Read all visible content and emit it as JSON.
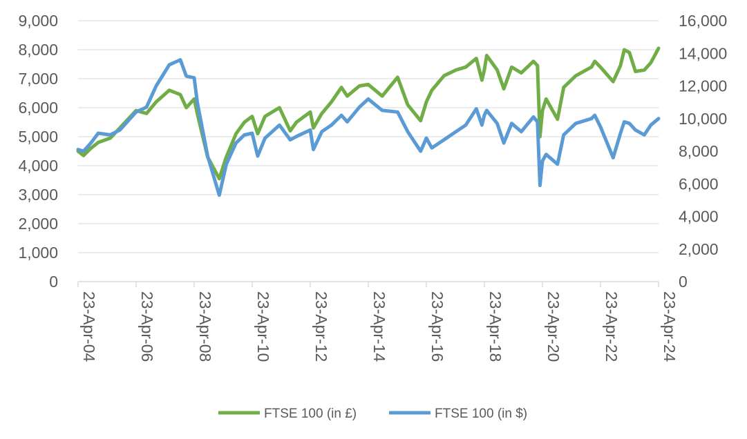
{
  "chart_data": {
    "type": "line",
    "title": "",
    "xlabel": "",
    "ylabel": "",
    "y2label": "",
    "x_ticks": [
      "23-Apr-04",
      "23-Apr-06",
      "23-Apr-08",
      "23-Apr-10",
      "23-Apr-12",
      "23-Apr-14",
      "23-Apr-16",
      "23-Apr-18",
      "23-Apr-20",
      "23-Apr-22",
      "23-Apr-24"
    ],
    "y_left_ticks": [
      "0",
      "1,000",
      "2,000",
      "3,000",
      "4,000",
      "5,000",
      "6,000",
      "7,000",
      "8,000",
      "9,000"
    ],
    "y_right_ticks": [
      "0",
      "2,000",
      "4,000",
      "6,000",
      "8,000",
      "10,000",
      "12,000",
      "14,000",
      "16,000"
    ],
    "ylim_left": [
      0,
      9000
    ],
    "ylim_right": [
      0,
      16000
    ],
    "grid": true,
    "legend_position": "bottom",
    "series": [
      {
        "name": "FTSE 100 (in £)",
        "axis": "left",
        "color": "#70ad47",
        "x": [
          "2004-04-23",
          "2004-07-01",
          "2004-10-01",
          "2005-01-01",
          "2005-06-01",
          "2005-10-01",
          "2006-04-23",
          "2006-09-01",
          "2007-01-01",
          "2007-06-15",
          "2007-11-01",
          "2008-01-15",
          "2008-04-23",
          "2008-06-01",
          "2008-10-10",
          "2009-03-05",
          "2009-06-01",
          "2009-10-01",
          "2010-01-15",
          "2010-04-23",
          "2010-07-01",
          "2010-10-01",
          "2011-04-01",
          "2011-08-15",
          "2011-11-01",
          "2012-04-23",
          "2012-06-01",
          "2012-09-15",
          "2013-01-15",
          "2013-05-20",
          "2013-08-01",
          "2014-01-01",
          "2014-04-23",
          "2014-10-15",
          "2015-04-27",
          "2015-09-01",
          "2016-02-11",
          "2016-04-23",
          "2016-07-01",
          "2016-12-01",
          "2017-05-01",
          "2017-09-01",
          "2018-01-12",
          "2018-03-23",
          "2018-04-23",
          "2018-05-22",
          "2018-10-01",
          "2018-12-24",
          "2019-04-01",
          "2019-08-01",
          "2019-12-31",
          "2020-02-20",
          "2020-03-23",
          "2020-04-23",
          "2020-06-08",
          "2020-10-30",
          "2021-01-15",
          "2021-06-15",
          "2021-12-31",
          "2022-02-10",
          "2022-04-23",
          "2022-09-30",
          "2022-12-31",
          "2023-02-17",
          "2023-04-23",
          "2023-07-07",
          "2023-10-27",
          "2024-01-17",
          "2024-04-23"
        ],
        "values": [
          4500,
          4350,
          4600,
          4800,
          4950,
          5300,
          5900,
          5800,
          6200,
          6600,
          6450,
          6000,
          6300,
          5800,
          4300,
          3550,
          4300,
          5100,
          5500,
          5700,
          5100,
          5700,
          6000,
          5200,
          5500,
          5850,
          5300,
          5800,
          6200,
          6700,
          6400,
          6750,
          6800,
          6400,
          7050,
          6100,
          5550,
          6200,
          6600,
          7100,
          7300,
          7400,
          7700,
          6950,
          7300,
          7800,
          7300,
          6650,
          7400,
          7200,
          7600,
          7450,
          5000,
          5900,
          6300,
          5600,
          6700,
          7100,
          7400,
          7600,
          7400,
          6900,
          7450,
          8000,
          7900,
          7250,
          7300,
          7550,
          8050
        ]
      },
      {
        "name": "FTSE 100 (in $)",
        "axis": "right",
        "color": "#5b9bd5",
        "x": [
          "2004-04-23",
          "2004-07-01",
          "2004-10-01",
          "2005-01-01",
          "2005-06-01",
          "2005-10-01",
          "2006-04-23",
          "2006-09-01",
          "2007-01-01",
          "2007-06-15",
          "2007-11-01",
          "2008-01-15",
          "2008-04-23",
          "2008-06-01",
          "2008-10-10",
          "2009-03-05",
          "2009-06-01",
          "2009-10-01",
          "2010-01-15",
          "2010-04-23",
          "2010-07-01",
          "2010-10-01",
          "2011-04-01",
          "2011-08-15",
          "2011-11-01",
          "2012-04-23",
          "2012-06-01",
          "2012-09-15",
          "2013-01-15",
          "2013-05-20",
          "2013-08-01",
          "2014-01-01",
          "2014-04-23",
          "2014-10-15",
          "2015-04-27",
          "2015-09-01",
          "2016-02-11",
          "2016-04-23",
          "2016-07-01",
          "2016-12-01",
          "2017-05-01",
          "2017-09-01",
          "2018-01-12",
          "2018-03-23",
          "2018-04-23",
          "2018-05-22",
          "2018-10-01",
          "2018-12-24",
          "2019-04-01",
          "2019-08-01",
          "2019-12-31",
          "2020-02-20",
          "2020-03-23",
          "2020-04-23",
          "2020-06-08",
          "2020-10-30",
          "2021-01-15",
          "2021-06-15",
          "2021-12-31",
          "2022-02-10",
          "2022-04-23",
          "2022-09-30",
          "2022-12-31",
          "2023-02-17",
          "2023-04-23",
          "2023-07-07",
          "2023-10-27",
          "2024-01-17",
          "2024-04-23"
        ],
        "values": [
          8100,
          8000,
          8500,
          9100,
          9000,
          9300,
          10400,
          10700,
          12000,
          13300,
          13600,
          12600,
          12500,
          11000,
          7700,
          5300,
          7200,
          8500,
          9000,
          9100,
          7700,
          8800,
          9600,
          8700,
          8900,
          9300,
          8100,
          9200,
          9600,
          10200,
          9800,
          10700,
          11200,
          10500,
          10400,
          9200,
          8000,
          8800,
          8200,
          8700,
          9200,
          9600,
          10600,
          9600,
          10200,
          10500,
          9700,
          8500,
          9700,
          9200,
          10100,
          9800,
          5900,
          7400,
          7800,
          7200,
          9000,
          9700,
          10000,
          10200,
          9500,
          7600,
          9100,
          9800,
          9700,
          9300,
          9000,
          9600,
          10000
        ]
      }
    ]
  }
}
